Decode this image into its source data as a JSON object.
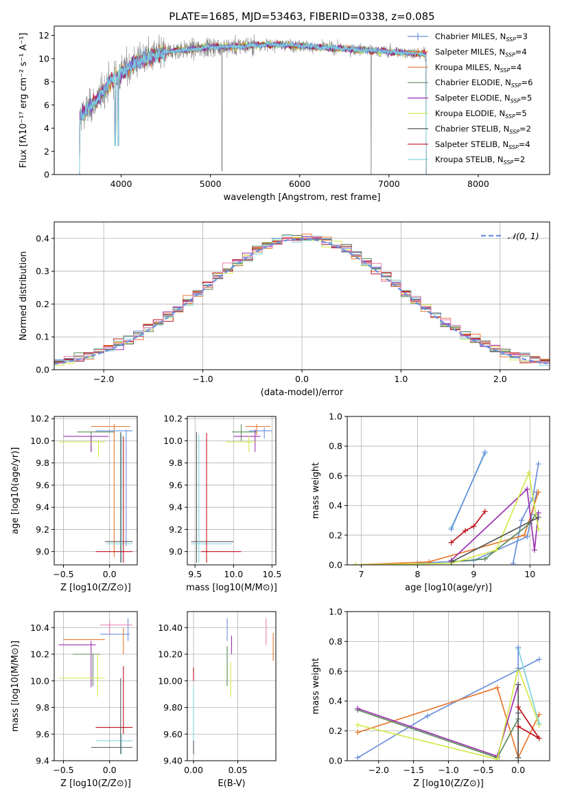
{
  "figure_title": "PLATE=1685, MJD=53463, FIBERID=0338, z=0.085",
  "colors": {
    "chabrier_miles": "#6a8fdc",
    "salpeter_miles": "#e8772b",
    "kroupa_miles": "#e8772b",
    "chabrier_elodie": "#5a8a5a",
    "salpeter_elodie": "#9b30b0",
    "kroupa_elodie": "#d4e84a",
    "chabrier_stelib": "#555555",
    "salpeter_stelib": "#c0101a",
    "kroupa_stelib": "#7ed3dd",
    "data_spectrum": "#888888",
    "pink": "#e87fb2",
    "normal_curve": "#6a8fdc"
  },
  "chart_data": [
    {
      "id": "spectrum",
      "type": "line",
      "xlabel": "wavelength [Angstrom, rest frame]",
      "ylabel": "Flux [fλ10⁻¹⁷ erg cm⁻² s⁻¹ A⁻¹]",
      "xlim": [
        3250,
        8800
      ],
      "ylim": [
        0,
        12.8
      ],
      "xticks": [
        4000,
        5000,
        6000,
        7000,
        8000
      ],
      "yticks": [
        0,
        2,
        4,
        6,
        8,
        10,
        12
      ],
      "grid": false,
      "legend_position": "upper-right",
      "legend": [
        {
          "label": "Chabrier MILES, N",
          "sub": "SSP",
          "suffix": "=3",
          "color": "#6a8fdc",
          "style": "marker"
        },
        {
          "label": "Salpeter MILES, N",
          "sub": "SSP",
          "suffix": "=4",
          "color": "#e8772b",
          "style": "marker"
        },
        {
          "label": "Kroupa MILES, N",
          "sub": "SSP",
          "suffix": "=4",
          "color": "#e8772b",
          "style": "line"
        },
        {
          "label": "Chabrier ELODIE, N",
          "sub": "SSP",
          "suffix": "=6",
          "color": "#5a8a5a",
          "style": "line"
        },
        {
          "label": "Salpeter ELODIE, N",
          "sub": "SSP",
          "suffix": "=5",
          "color": "#9b30b0",
          "style": "line"
        },
        {
          "label": "Kroupa ELODIE, N",
          "sub": "SSP",
          "suffix": "=5",
          "color": "#d4e84a",
          "style": "line"
        },
        {
          "label": "Chabrier STELIB, N",
          "sub": "SSP",
          "suffix": "=2",
          "color": "#555555",
          "style": "line"
        },
        {
          "label": "Salpeter STELIB, N",
          "sub": "SSP",
          "suffix": "=4",
          "color": "#c0101a",
          "style": "line"
        },
        {
          "label": "Kroupa STELIB, N",
          "sub": "SSP",
          "suffix": "=2",
          "color": "#7ed3dd",
          "style": "line"
        }
      ],
      "data_range": [
        3530,
        7420
      ],
      "continuum_x": [
        3530,
        3600,
        3700,
        3800,
        3900,
        4000,
        4100,
        4200,
        4300,
        4400,
        4600,
        4800,
        5000,
        5200,
        5400,
        5600,
        5800,
        6000,
        6200,
        6400,
        6600,
        6800,
        7000,
        7200,
        7420
      ],
      "continuum_y": [
        5.0,
        5.4,
        6.2,
        7.2,
        8.2,
        8.8,
        9.3,
        9.8,
        10.1,
        10.3,
        10.7,
        10.8,
        11.0,
        11.0,
        11.1,
        11.2,
        11.2,
        11.1,
        11.0,
        10.9,
        10.8,
        10.7,
        10.6,
        10.5,
        10.4
      ]
    },
    {
      "id": "residuals",
      "type": "histogram",
      "xlabel": "(data-model)/error",
      "ylabel": "Normed distribution",
      "xlim": [
        -2.5,
        2.5
      ],
      "ylim": [
        0,
        0.45
      ],
      "xticks": [
        -2,
        -1,
        0,
        1,
        2
      ],
      "yticks": [
        0.0,
        0.1,
        0.2,
        0.3,
        0.4
      ],
      "grid": true,
      "legend_position": "upper-right",
      "curve_label": "𝒩(0, 1)",
      "bin_width": 0.1
    },
    {
      "id": "age_vs_Z",
      "type": "errorbar",
      "xlabel": "Z [log10(Z/Z⊙)]",
      "ylabel": "age  [log10(age/yr)]",
      "xlim": [
        -0.6,
        0.3
      ],
      "ylim": [
        8.88,
        10.22
      ],
      "xticks": [
        -0.5,
        0.0
      ],
      "yticks": [
        9.0,
        9.2,
        9.4,
        9.6,
        9.8,
        10.0,
        10.2
      ],
      "grid": true
    },
    {
      "id": "age_vs_mass",
      "type": "errorbar",
      "xlabel": "mass [log10(M/M⊙)]",
      "ylabel": "",
      "xlim": [
        9.4,
        10.55
      ],
      "ylim": [
        8.88,
        10.22
      ],
      "xticks": [
        9.5,
        10.0,
        10.5
      ],
      "yticks": [
        9.0,
        9.2,
        9.4,
        9.6,
        9.8,
        10.0,
        10.2
      ],
      "grid": true
    },
    {
      "id": "massweight_vs_age",
      "type": "line",
      "xlabel": "age  [log10(age/yr)]",
      "ylabel": "mass weight",
      "xlim": [
        6.75,
        10.35
      ],
      "ylim": [
        0,
        1.0
      ],
      "xticks": [
        7,
        8,
        9,
        10
      ],
      "yticks": [
        0.0,
        0.2,
        0.4,
        0.6,
        0.8,
        1.0
      ],
      "grid": true,
      "series": [
        {
          "color": "#6a8fdc",
          "x": [
            9.7,
            9.85,
            10.05,
            10.15
          ],
          "y": [
            0.01,
            0.3,
            0.45,
            0.68
          ]
        },
        {
          "color": "#6a8fdc",
          "x": [
            8.0,
            9.0,
            9.95,
            10.12
          ],
          "y": [
            0.01,
            0.03,
            0.19,
            0.49
          ]
        },
        {
          "color": "#e8772b",
          "x": [
            6.9,
            8.2,
            9.9,
            10.15
          ],
          "y": [
            0.0,
            0.02,
            0.2,
            0.49
          ]
        },
        {
          "color": "#5a8a5a",
          "x": [
            8.6,
            9.2,
            10.0,
            10.1
          ],
          "y": [
            0.02,
            0.04,
            0.28,
            0.34
          ]
        },
        {
          "color": "#9b30b0",
          "x": [
            8.6,
            9.95,
            10.08,
            10.15
          ],
          "y": [
            0.03,
            0.51,
            0.1,
            0.35
          ]
        },
        {
          "color": "#d4e84a",
          "x": [
            6.9,
            8.6,
            9.4,
            9.98,
            10.15
          ],
          "y": [
            0.0,
            0.01,
            0.1,
            0.62,
            0.24
          ]
        },
        {
          "color": "#555555",
          "x": [
            8.6,
            10.15
          ],
          "y": [
            0.02,
            0.32
          ]
        },
        {
          "color": "#c0101a",
          "x": [
            8.6,
            8.85,
            9.0,
            9.2
          ],
          "y": [
            0.15,
            0.23,
            0.26,
            0.36
          ]
        },
        {
          "color": "#7ed3dd",
          "x": [
            8.6,
            9.2
          ],
          "y": [
            0.25,
            0.75
          ]
        },
        {
          "color": "#6a8fdc",
          "x": [
            8.6,
            9.2
          ],
          "y": [
            0.24,
            0.76
          ]
        }
      ]
    },
    {
      "id": "mass_vs_Z",
      "type": "errorbar",
      "xlabel": "Z [log10(Z/Z⊙)]",
      "ylabel": "mass [log10(M/M⊙)]",
      "xlim": [
        -0.6,
        0.3
      ],
      "ylim": [
        9.4,
        10.52
      ],
      "xticks": [
        -0.5,
        0.0
      ],
      "yticks": [
        9.4,
        9.6,
        9.8,
        10.0,
        10.2,
        10.4
      ],
      "grid": true
    },
    {
      "id": "mass_vs_EBV",
      "type": "errorbar",
      "xlabel": "E(B-V)",
      "ylabel": "",
      "xlim": [
        -0.007,
        0.093
      ],
      "ylim": [
        9.4,
        10.52
      ],
      "xticks": [
        0.0,
        0.05
      ],
      "yticks": [
        9.4,
        9.6,
        9.8,
        10.0,
        10.2,
        10.4
      ],
      "grid": true
    },
    {
      "id": "massweight_vs_Z",
      "type": "line",
      "xlabel": "Z [log10(Z/Z⊙)]",
      "ylabel": "mass weight",
      "xlim": [
        -2.45,
        0.45
      ],
      "ylim": [
        0,
        1.0
      ],
      "xticks": [
        -2.0,
        -1.5,
        -1.0,
        -0.5,
        0.0
      ],
      "yticks": [
        0.0,
        0.2,
        0.4,
        0.6,
        0.8,
        1.0
      ],
      "grid": true,
      "series": [
        {
          "color": "#6a8fdc",
          "x": [
            -2.3,
            -1.3,
            0.3
          ],
          "y": [
            0.02,
            0.3,
            0.68
          ]
        },
        {
          "color": "#e8772b",
          "x": [
            -2.3,
            -0.3,
            0.0,
            0.3
          ],
          "y": [
            0.19,
            0.49,
            0.02,
            0.31
          ]
        },
        {
          "color": "#5a8a5a",
          "x": [
            -2.3,
            -0.3,
            0.0,
            0.0
          ],
          "y": [
            0.34,
            0.02,
            0.28,
            0.02
          ]
        },
        {
          "color": "#9b30b0",
          "x": [
            -2.3,
            -0.3,
            0.0
          ],
          "y": [
            0.35,
            0.03,
            0.51
          ]
        },
        {
          "color": "#d4e84a",
          "x": [
            -2.3,
            -0.3,
            0.0,
            0.3
          ],
          "y": [
            0.24,
            0.01,
            0.62,
            0.24
          ]
        },
        {
          "color": "#555555",
          "x": [
            0.0,
            0.0,
            0.0
          ],
          "y": [
            0.02,
            0.32,
            0.51
          ]
        },
        {
          "color": "#c0101a",
          "x": [
            0.0,
            0.3,
            0.0
          ],
          "y": [
            0.36,
            0.15,
            0.23
          ]
        },
        {
          "color": "#7ed3dd",
          "x": [
            0.0,
            0.3
          ],
          "y": [
            0.75,
            0.25
          ]
        },
        {
          "color": "#6a8fdc",
          "x": [
            0.0,
            0.0
          ],
          "y": [
            0.76,
            0.62
          ]
        }
      ]
    }
  ]
}
